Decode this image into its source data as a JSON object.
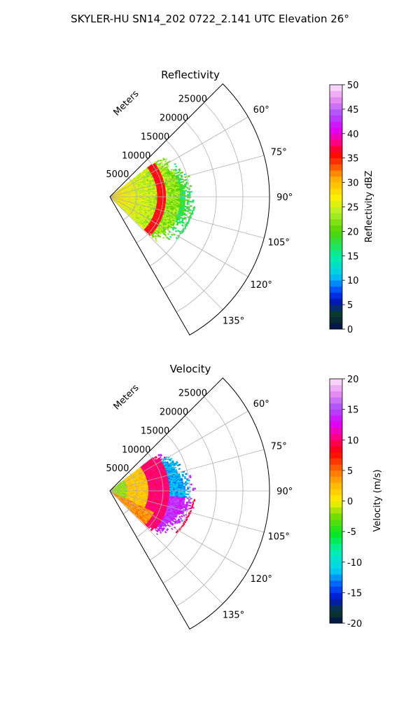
{
  "title": "SKYLER-HU  SN14_202  0722_2.141 UTC Elevation 26°",
  "chart_data": [
    {
      "type": "heatmap",
      "projection": "polar-sector",
      "title": "Reflectivity",
      "range_label": "Meters",
      "range_ticks": [
        5000,
        10000,
        15000,
        20000,
        25000
      ],
      "range_max": 30000,
      "azimuth_range_deg": [
        45,
        150
      ],
      "azimuth_ticks": [
        60,
        75,
        90,
        105,
        120,
        135
      ],
      "azimuth_tick_labels": [
        "60°",
        "75°",
        "90°",
        "105°",
        "120°",
        "135°"
      ],
      "grid": true,
      "data_extent": {
        "azimuth_deg": [
          52,
          134
        ],
        "range_m": [
          0,
          16500
        ]
      },
      "features": [
        {
          "kind": "ring",
          "range_m": 9500,
          "value": 36
        },
        {
          "kind": "echo-line",
          "azimuth_deg": [
            96,
            122
          ],
          "range_m": [
            14000,
            16000
          ],
          "value": 17
        }
      ],
      "colorbar": {
        "label": "Reflectivity dBZ",
        "min": 0,
        "max": 50,
        "ticks": [
          0,
          5,
          10,
          15,
          20,
          25,
          30,
          35,
          40,
          45,
          50
        ],
        "colormap": "pyart_HomeyerRainbow"
      }
    },
    {
      "type": "heatmap",
      "projection": "polar-sector",
      "title": "Velocity",
      "range_label": "Meters",
      "range_ticks": [
        5000,
        10000,
        15000,
        20000,
        25000
      ],
      "range_max": 30000,
      "azimuth_range_deg": [
        45,
        150
      ],
      "azimuth_ticks": [
        60,
        75,
        90,
        105,
        120,
        135
      ],
      "azimuth_tick_labels": [
        "60°",
        "75°",
        "90°",
        "105°",
        "120°",
        "135°"
      ],
      "grid": true,
      "data_extent": {
        "azimuth_deg": [
          52,
          134
        ],
        "range_m": [
          0,
          16500
        ]
      },
      "features": [
        {
          "kind": "core",
          "azimuth_deg": [
            58,
            95
          ],
          "range_m": [
            11000,
            15000
          ],
          "value": -12
        },
        {
          "kind": "echo-line",
          "azimuth_deg": [
            96,
            122
          ],
          "range_m": [
            14000,
            16000
          ],
          "value": 9
        }
      ],
      "colorbar": {
        "label": "Velocity (m/s)",
        "min": -20,
        "max": 20,
        "ticks": [
          -20,
          -15,
          -10,
          -5,
          0,
          5,
          10,
          15,
          20
        ],
        "colormap": "pyart_BuDRd18"
      }
    }
  ]
}
